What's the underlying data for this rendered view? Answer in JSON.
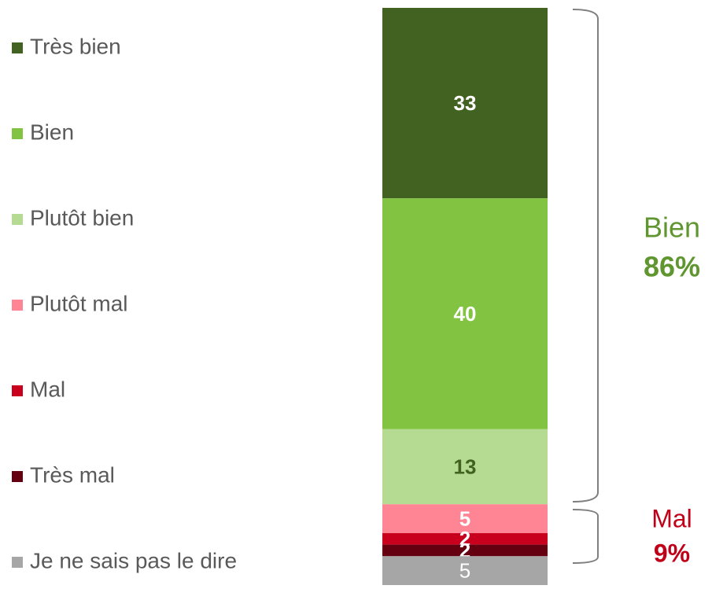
{
  "chart_data": {
    "type": "stacked_bar",
    "categories": [
      null
    ],
    "series": [
      {
        "name": "Très bien",
        "color": "#416221",
        "label_color": "#ffffff",
        "label_weight": "bold",
        "values": [
          33
        ]
      },
      {
        "name": "Bien",
        "color": "#82c341",
        "label_color": "#ffffff",
        "label_weight": "bold",
        "values": [
          40
        ]
      },
      {
        "name": "Plutôt bien",
        "color": "#b5db92",
        "label_color": "#416221",
        "label_weight": "bold",
        "values": [
          13
        ]
      },
      {
        "name": "Plutôt mal",
        "color": "#ff8595",
        "label_color": "#ffffff",
        "label_weight": "bold",
        "values": [
          5
        ]
      },
      {
        "name": "Mal",
        "color": "#c8001e",
        "label_color": "#ffffff",
        "label_weight": "bold",
        "values": [
          2
        ]
      },
      {
        "name": "Très mal",
        "color": "#640010",
        "label_color": "#ffffff",
        "label_weight": "bold",
        "values": [
          2
        ]
      },
      {
        "name": "Je ne sais pas le dire",
        "color": "#a6a6a6",
        "label_color": "#ffffff",
        "label_weight": "normal",
        "values": [
          5
        ]
      }
    ],
    "annotations": [
      {
        "label": "Bien",
        "value": "86%",
        "color": "#5f9630"
      },
      {
        "label": "Mal",
        "value": "9%",
        "color": "#c00018"
      }
    ],
    "legend": "left"
  }
}
